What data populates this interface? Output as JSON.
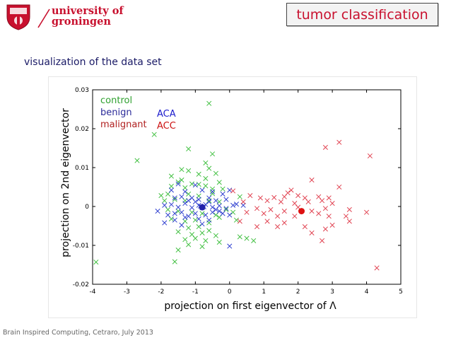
{
  "header": {
    "university_line1": "university of",
    "university_line2": "groningen",
    "slide_title": "tumor classification"
  },
  "subtitle": "visualization of the data set",
  "footer": "Brain Inspired Computing, Cetraro, July 2013",
  "colors": {
    "control": "#3fbf3f",
    "benign": "#2f3fcf",
    "malignant": "#e0404f",
    "accent": "#c8102e",
    "navy": "#1a1a66"
  },
  "chart_data": {
    "type": "scatter",
    "xlabel": "projection on first eigenvector of Λ",
    "ylabel": "projection on 2nd eigenvector",
    "xlim": [
      -4,
      5
    ],
    "ylim": [
      -0.02,
      0.03
    ],
    "xticks": [
      "-4",
      "-3",
      "-2",
      "-1",
      "0",
      "1",
      "2",
      "3",
      "4",
      "5"
    ],
    "yticks": [
      "-0.02",
      "-0.01",
      "0",
      "0.01",
      "0.02",
      "0.03"
    ],
    "legend": [
      "control",
      "benign",
      "malignant"
    ],
    "annotations": [
      {
        "text": "ACA",
        "color": "#1a1acc"
      },
      {
        "text": "ACC",
        "color": "#cc1111"
      }
    ],
    "series": [
      {
        "name": "control",
        "color": "#3fbf3f",
        "points": [
          [
            -0.6,
            0.0265
          ],
          [
            -2.2,
            0.0185
          ],
          [
            -2.7,
            0.0118
          ],
          [
            -3.9,
            -0.0143
          ],
          [
            -1.2,
            0.0148
          ],
          [
            -0.5,
            0.0135
          ],
          [
            -0.7,
            0.0112
          ],
          [
            -0.6,
            0.0098
          ],
          [
            -1.4,
            0.0095
          ],
          [
            -1.2,
            0.0092
          ],
          [
            -1.7,
            0.0078
          ],
          [
            -0.9,
            0.0083
          ],
          [
            -0.3,
            0.0062
          ],
          [
            -0.7,
            0.0072
          ],
          [
            -0.4,
            0.0085
          ],
          [
            -1.5,
            0.0063
          ],
          [
            -1.1,
            0.0058
          ],
          [
            -0.9,
            0.0057
          ],
          [
            -1.7,
            0.0052
          ],
          [
            -1.3,
            0.0048
          ],
          [
            -0.7,
            0.0053
          ],
          [
            -0.5,
            0.0045
          ],
          [
            -1.8,
            0.0032
          ],
          [
            -2.0,
            0.0028
          ],
          [
            -1.2,
            0.0032
          ],
          [
            -0.9,
            0.0027
          ],
          [
            -0.5,
            0.0033
          ],
          [
            -1.6,
            0.0018
          ],
          [
            -1.3,
            0.0015
          ],
          [
            -0.6,
            0.0015
          ],
          [
            -0.3,
            0.0012
          ],
          [
            -1.8,
            -0.0008
          ],
          [
            -1.5,
            -0.0012
          ],
          [
            -1.1,
            -0.0015
          ],
          [
            -0.8,
            -0.0018
          ],
          [
            -0.4,
            -0.0022
          ],
          [
            -0.1,
            -0.0008
          ],
          [
            0.1,
            -0.0015
          ],
          [
            -1.7,
            -0.0032
          ],
          [
            -1.3,
            -0.0038
          ],
          [
            -1.0,
            -0.0035
          ],
          [
            -0.6,
            -0.0042
          ],
          [
            -0.3,
            -0.0028
          ],
          [
            -1.2,
            -0.0055
          ],
          [
            -0.9,
            -0.0052
          ],
          [
            -0.6,
            -0.0062
          ],
          [
            -1.5,
            -0.0065
          ],
          [
            -1.1,
            -0.0072
          ],
          [
            -0.8,
            -0.0068
          ],
          [
            -0.4,
            -0.0075
          ],
          [
            -1.3,
            -0.0085
          ],
          [
            -1.0,
            -0.0082
          ],
          [
            -0.7,
            -0.0088
          ],
          [
            -0.3,
            -0.0092
          ],
          [
            -1.2,
            -0.0098
          ],
          [
            -0.8,
            -0.0103
          ],
          [
            -1.5,
            -0.0112
          ],
          [
            0.3,
            -0.0078
          ],
          [
            0.5,
            -0.0082
          ],
          [
            0.7,
            -0.0088
          ],
          [
            -1.6,
            -0.0142
          ],
          [
            0.2,
            -0.0035
          ],
          [
            -0.2,
            0.0045
          ],
          [
            0.3,
            0.0025
          ],
          [
            -1.9,
            0.0015
          ],
          [
            -1.4,
            0.0068
          ]
        ]
      },
      {
        "name": "benign",
        "color": "#2f3fcf",
        "points": [
          [
            -1.5,
            0.0058
          ],
          [
            -1.0,
            0.0055
          ],
          [
            -1.7,
            0.0042
          ],
          [
            -1.3,
            0.0038
          ],
          [
            -0.8,
            0.0042
          ],
          [
            -0.5,
            0.0038
          ],
          [
            -0.2,
            0.0032
          ],
          [
            0.0,
            0.0042
          ],
          [
            -1.6,
            0.0022
          ],
          [
            -1.4,
            0.0025
          ],
          [
            -1.1,
            0.0022
          ],
          [
            -0.9,
            0.0018
          ],
          [
            -0.6,
            0.0022
          ],
          [
            -0.4,
            0.0015
          ],
          [
            -0.1,
            0.0018
          ],
          [
            -2.1,
            -0.0012
          ],
          [
            -1.9,
            0.0003
          ],
          [
            -1.7,
            0.0005
          ],
          [
            -1.5,
            -0.0002
          ],
          [
            -1.3,
            0.0008
          ],
          [
            -1.1,
            -0.0003
          ],
          [
            -0.9,
            0.0003
          ],
          [
            -0.7,
            0.0005
          ],
          [
            -0.5,
            -0.0002
          ],
          [
            -0.3,
            0.0002
          ],
          [
            -0.1,
            -0.0005
          ],
          [
            0.1,
            0.0003
          ],
          [
            0.2,
            0.0006
          ],
          [
            -1.8,
            -0.0022
          ],
          [
            -1.6,
            -0.0018
          ],
          [
            -1.4,
            -0.0015
          ],
          [
            -1.2,
            -0.0025
          ],
          [
            -1.0,
            -0.0018
          ],
          [
            -0.7,
            -0.0022
          ],
          [
            -0.5,
            -0.0015
          ],
          [
            -0.2,
            -0.0018
          ],
          [
            0.0,
            -0.0022
          ],
          [
            -1.6,
            -0.0035
          ],
          [
            -1.3,
            -0.0028
          ],
          [
            -0.9,
            -0.0032
          ],
          [
            -0.6,
            -0.0035
          ],
          [
            -0.3,
            -0.0012
          ],
          [
            -1.9,
            -0.0042
          ],
          [
            -1.4,
            -0.0048
          ],
          [
            -0.8,
            -0.0045
          ],
          [
            0.0,
            -0.0102
          ],
          [
            -0.8,
            -0.0003
          ],
          [
            -1.0,
            0.0012
          ],
          [
            -0.6,
            0.0012
          ],
          [
            -1.2,
            0.0015
          ],
          [
            -0.4,
            -0.0008
          ],
          [
            0.4,
            0.0003
          ],
          [
            -0.85,
            0.0001
          ],
          [
            -0.75,
            -0.0001
          ]
        ]
      },
      {
        "name": "malignant",
        "color": "#e0404f",
        "points": [
          [
            3.2,
            0.0165
          ],
          [
            2.8,
            0.0152
          ],
          [
            4.1,
            0.013
          ],
          [
            2.4,
            0.0068
          ],
          [
            3.2,
            0.005
          ],
          [
            1.8,
            0.0042
          ],
          [
            0.6,
            0.0028
          ],
          [
            0.9,
            0.0022
          ],
          [
            1.3,
            0.0023
          ],
          [
            1.6,
            0.0025
          ],
          [
            2.0,
            0.0028
          ],
          [
            2.2,
            0.0022
          ],
          [
            2.6,
            0.0025
          ],
          [
            2.9,
            0.0022
          ],
          [
            1.7,
            0.0035
          ],
          [
            0.1,
            0.004
          ],
          [
            1.1,
            0.0015
          ],
          [
            1.5,
            0.0012
          ],
          [
            1.9,
            0.0008
          ],
          [
            2.3,
            0.0012
          ],
          [
            2.7,
            0.0015
          ],
          [
            3.0,
            0.0008
          ],
          [
            0.8,
            -0.0005
          ],
          [
            1.2,
            -0.0008
          ],
          [
            1.6,
            -0.0012
          ],
          [
            2.0,
            -0.0002
          ],
          [
            2.4,
            -0.0012
          ],
          [
            2.8,
            -0.0005
          ],
          [
            3.5,
            -0.0008
          ],
          [
            0.5,
            -0.0015
          ],
          [
            1.0,
            -0.0018
          ],
          [
            1.4,
            -0.0025
          ],
          [
            1.9,
            -0.0025
          ],
          [
            2.6,
            -0.0018
          ],
          [
            3.4,
            -0.0025
          ],
          [
            4.0,
            -0.0015
          ],
          [
            1.1,
            -0.0038
          ],
          [
            1.6,
            -0.0042
          ],
          [
            2.2,
            -0.0052
          ],
          [
            2.8,
            -0.0058
          ],
          [
            3.5,
            -0.0038
          ],
          [
            0.8,
            -0.0052
          ],
          [
            2.4,
            -0.0068
          ],
          [
            2.7,
            -0.0088
          ],
          [
            4.3,
            -0.0158
          ],
          [
            3.0,
            -0.0048
          ],
          [
            0.3,
            -0.0038
          ],
          [
            2.9,
            -0.0025
          ],
          [
            1.4,
            -0.0052
          ],
          [
            0.4,
            0.0012
          ]
        ]
      }
    ],
    "centroids": [
      {
        "x": -0.8,
        "y": -0.0002,
        "color": "#2222aa"
      },
      {
        "x": 2.1,
        "y": -0.0012,
        "color": "#dd1111"
      }
    ]
  }
}
